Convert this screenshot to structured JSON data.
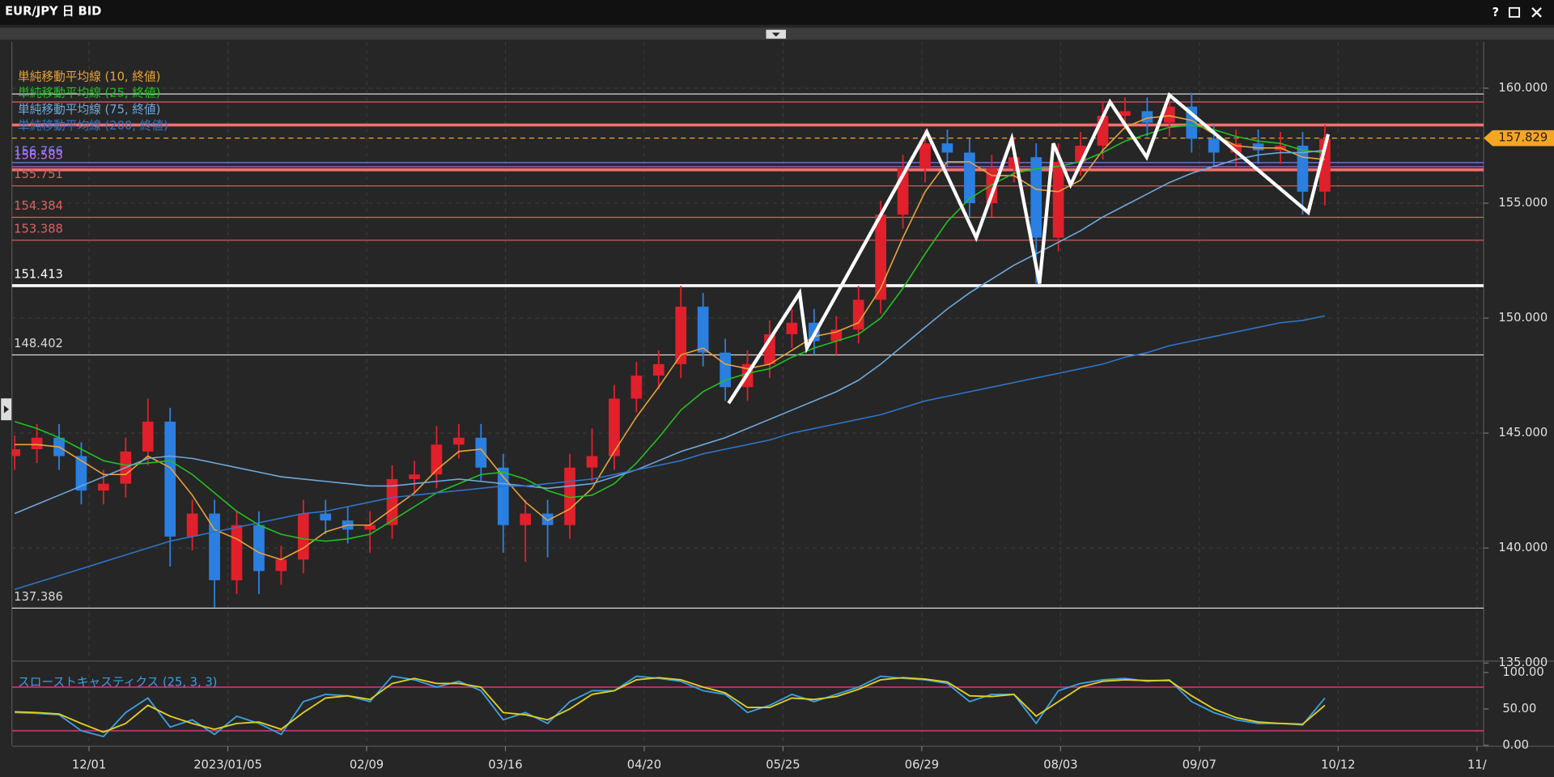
{
  "window": {
    "title": "EUR/JPY 日 BID",
    "help": "?"
  },
  "chart_data": {
    "type": "candlestick",
    "up_color": "#e0202a",
    "down_color": "#2a7fe0",
    "x": [
      0,
      4,
      8,
      12,
      16,
      20,
      24,
      28,
      32,
      36,
      40,
      44,
      48,
      52,
      56,
      60,
      64,
      68,
      72,
      76,
      80,
      84,
      88,
      92,
      96,
      100,
      104,
      108,
      112,
      116,
      120,
      124,
      128,
      132,
      136,
      140,
      144,
      148,
      152,
      156,
      160,
      164,
      168,
      172,
      176,
      180,
      184,
      188,
      192,
      196,
      200,
      204,
      208,
      212,
      216,
      220,
      224,
      228,
      232,
      236
    ],
    "open": [
      144.0,
      144.3,
      144.8,
      144.0,
      142.5,
      142.8,
      144.2,
      145.5,
      140.5,
      141.5,
      138.6,
      141.0,
      139.0,
      139.5,
      141.5,
      141.2,
      140.8,
      141.0,
      143.0,
      143.2,
      144.5,
      144.8,
      143.5,
      141.0,
      141.5,
      141.0,
      143.5,
      144.0,
      146.5,
      147.5,
      148.0,
      150.5,
      148.5,
      147.0,
      148.0,
      149.3,
      149.8,
      149.0,
      149.5,
      150.8,
      154.5,
      156.5,
      157.6,
      157.2,
      155.0,
      156.5,
      157.0,
      153.5,
      156.8,
      157.5,
      158.8,
      159.0,
      158.5,
      159.2,
      157.8,
      157.2,
      157.6,
      157.3,
      157.5,
      155.5
    ],
    "high": [
      144.9,
      145.4,
      145.4,
      144.6,
      143.4,
      144.8,
      146.5,
      146.1,
      142.1,
      142.1,
      141.6,
      141.6,
      140.1,
      142.1,
      142.1,
      141.8,
      141.6,
      143.6,
      143.8,
      145.3,
      145.4,
      145.4,
      144.1,
      142.1,
      142.1,
      144.1,
      145.2,
      147.1,
      148.1,
      148.6,
      151.4,
      151.1,
      149.1,
      148.6,
      149.9,
      150.4,
      150.4,
      150.1,
      151.4,
      155.1,
      157.1,
      158.2,
      158.2,
      157.8,
      157.1,
      157.8,
      157.6,
      157.6,
      158.1,
      159.4,
      159.6,
      159.6,
      159.8,
      159.8,
      158.4,
      158.2,
      158.2,
      158.1,
      158.1,
      158.4
    ],
    "low": [
      143.4,
      143.7,
      143.4,
      141.9,
      141.9,
      142.2,
      143.6,
      139.2,
      139.9,
      137.4,
      138.0,
      138.0,
      138.4,
      138.9,
      140.6,
      140.2,
      139.8,
      140.4,
      142.4,
      142.6,
      143.9,
      142.9,
      139.8,
      139.4,
      139.6,
      140.4,
      142.9,
      143.4,
      145.9,
      146.9,
      147.4,
      147.9,
      146.4,
      146.4,
      147.4,
      148.7,
      148.4,
      148.4,
      148.9,
      150.2,
      153.9,
      155.9,
      156.6,
      154.4,
      154.4,
      155.9,
      151.5,
      152.9,
      156.2,
      156.9,
      158.2,
      157.9,
      157.9,
      157.2,
      156.6,
      156.6,
      156.7,
      156.7,
      154.5,
      154.9
    ],
    "close": [
      144.3,
      144.8,
      144.0,
      142.5,
      142.8,
      144.2,
      145.5,
      140.5,
      141.5,
      138.6,
      141.0,
      139.0,
      139.5,
      141.5,
      141.2,
      140.8,
      141.0,
      143.0,
      143.2,
      144.5,
      144.8,
      143.5,
      141.0,
      141.5,
      141.0,
      143.5,
      144.0,
      146.5,
      147.5,
      148.0,
      150.5,
      148.5,
      147.0,
      148.0,
      149.3,
      149.8,
      149.0,
      149.5,
      150.8,
      154.5,
      156.5,
      157.6,
      157.2,
      155.0,
      156.5,
      157.0,
      153.5,
      156.8,
      157.5,
      158.8,
      159.0,
      158.5,
      159.2,
      157.8,
      157.2,
      157.6,
      157.3,
      157.5,
      155.5,
      157.8
    ],
    "xlim": [
      -0.5,
      264.6
    ],
    "xticks": [
      {
        "value": 13.4,
        "label": "12/01"
      },
      {
        "value": 38.4,
        "label": "2023/01/05"
      },
      {
        "value": 63.4,
        "label": "02/09"
      },
      {
        "value": 88.4,
        "label": "03/16"
      },
      {
        "value": 113.4,
        "label": "04/20"
      },
      {
        "value": 138.4,
        "label": "05/25"
      },
      {
        "value": 163.4,
        "label": "06/29"
      },
      {
        "value": 188.4,
        "label": "08/03"
      },
      {
        "value": 213.4,
        "label": "09/07"
      },
      {
        "value": 238.4,
        "label": "10/12"
      },
      {
        "value": 263.4,
        "label": "11/"
      }
    ],
    "ylim": [
      135,
      162
    ],
    "yticks": [
      {
        "value": 135,
        "label": "135.000"
      },
      {
        "value": 140,
        "label": "140.000"
      },
      {
        "value": 145,
        "label": "145.000"
      },
      {
        "value": 150,
        "label": "150.000"
      },
      {
        "value": 155,
        "label": "155.000"
      },
      {
        "value": 160,
        "label": "160.000"
      }
    ],
    "grid": true,
    "series": [
      {
        "name": "単純移動平均線 (10, 終値)",
        "color": "#e8a33a",
        "values": [
          144.5,
          144.5,
          144.4,
          143.8,
          143.2,
          143.2,
          144.0,
          143.5,
          142.3,
          140.8,
          140.4,
          139.8,
          139.5,
          140.0,
          140.7,
          141.0,
          141.0,
          141.7,
          142.4,
          143.4,
          144.2,
          144.3,
          143.1,
          142.0,
          141.2,
          141.7,
          142.6,
          144.2,
          145.7,
          147.0,
          148.4,
          148.7,
          148.0,
          147.8,
          148.0,
          148.6,
          149.2,
          149.4,
          149.8,
          151.3,
          153.5,
          155.5,
          156.8,
          156.8,
          156.2,
          156.2,
          155.6,
          155.5,
          156.0,
          157.3,
          158.3,
          158.7,
          158.8,
          158.6,
          158.0,
          157.5,
          157.4,
          157.4,
          157.0,
          156.9
        ]
      },
      {
        "name": "単純移動平均線 (25, 終値)",
        "color": "#22c022",
        "values": [
          145.5,
          145.2,
          144.8,
          144.3,
          143.8,
          143.6,
          143.7,
          143.8,
          143.2,
          142.4,
          141.6,
          141.0,
          140.6,
          140.4,
          140.3,
          140.4,
          140.6,
          141.2,
          141.8,
          142.4,
          142.8,
          143.2,
          143.3,
          143.0,
          142.5,
          142.2,
          142.3,
          142.8,
          143.7,
          144.8,
          146.0,
          146.8,
          147.3,
          147.6,
          147.8,
          148.3,
          148.7,
          149.0,
          149.3,
          150.0,
          151.3,
          152.8,
          154.2,
          155.2,
          155.8,
          156.3,
          156.5,
          156.6,
          156.8,
          157.2,
          157.7,
          158.0,
          158.3,
          158.4,
          158.2,
          157.9,
          157.7,
          157.6,
          157.3,
          157.2
        ]
      },
      {
        "name": "単純移動平均線 (75, 終値)",
        "color": "#6fa8dc",
        "values": [
          141.5,
          141.9,
          142.3,
          142.7,
          143.1,
          143.5,
          143.9,
          144.0,
          143.9,
          143.7,
          143.5,
          143.3,
          143.1,
          143.0,
          142.9,
          142.8,
          142.7,
          142.7,
          142.8,
          142.9,
          143.0,
          142.9,
          142.8,
          142.7,
          142.6,
          142.7,
          142.8,
          143.1,
          143.4,
          143.8,
          144.2,
          144.5,
          144.8,
          145.2,
          145.6,
          146.0,
          146.4,
          146.8,
          147.3,
          148.0,
          148.8,
          149.6,
          150.4,
          151.1,
          151.7,
          152.3,
          152.8,
          153.3,
          153.8,
          154.4,
          154.9,
          155.4,
          155.9,
          156.3,
          156.6,
          156.9,
          157.1,
          157.2,
          157.2,
          157.3
        ]
      },
      {
        "name": "単純移動平均線 (200, 終値)",
        "color": "#2e75c9",
        "values": [
          138.2,
          138.5,
          138.8,
          139.1,
          139.4,
          139.7,
          140.0,
          140.3,
          140.5,
          140.7,
          140.9,
          141.1,
          141.3,
          141.5,
          141.6,
          141.8,
          142.0,
          142.2,
          142.3,
          142.4,
          142.5,
          142.6,
          142.7,
          142.7,
          142.8,
          142.9,
          143.0,
          143.2,
          143.4,
          143.6,
          143.8,
          144.1,
          144.3,
          144.5,
          144.7,
          145.0,
          145.2,
          145.4,
          145.6,
          145.8,
          146.1,
          146.4,
          146.6,
          146.8,
          147.0,
          147.2,
          147.4,
          147.6,
          147.8,
          148.0,
          148.3,
          148.5,
          148.8,
          149.0,
          149.2,
          149.4,
          149.6,
          149.8,
          149.9,
          150.1
        ]
      }
    ],
    "levels": [
      {
        "value": 159.75,
        "color": "#d8d8d8"
      },
      {
        "value": 159.4,
        "color": "#e06060"
      },
      {
        "value": 158.4,
        "color": "#f07070",
        "thick": true
      },
      {
        "value": 156.766,
        "color": "#7b7bff",
        "label": "156.766"
      },
      {
        "value": 156.583,
        "color": "#c070ff",
        "label": "156.583"
      },
      {
        "value": 156.45,
        "color": "#f07070",
        "thick": true
      },
      {
        "value": 155.751,
        "color": "#e06060",
        "label": "155.751"
      },
      {
        "value": 154.384,
        "color": "#e06060",
        "label": "154.384"
      },
      {
        "value": 153.388,
        "color": "#e06060",
        "label": "153.388"
      },
      {
        "value": 151.413,
        "color": "#ffffff",
        "label": "151.413",
        "thick": true
      },
      {
        "value": 148.402,
        "color": "#d8d8d8",
        "label": "148.402"
      },
      {
        "value": 137.386,
        "color": "#d8d8d8",
        "label": "137.386"
      }
    ],
    "current_price": {
      "value": 157.829,
      "label": "157.829",
      "color": "#f5a623"
    },
    "zigzag": {
      "color": "#ffffff",
      "x": [
        128.6,
        141.4,
        142.7,
        164.3,
        173.2,
        179.6,
        184.6,
        187.1,
        190.2,
        197.3,
        203.9,
        208.0,
        233.0,
        236.6
      ],
      "values": [
        146.3,
        151.1,
        148.7,
        158.1,
        153.5,
        157.8,
        151.5,
        157.6,
        155.8,
        159.4,
        157.0,
        159.7,
        154.6,
        158.0
      ]
    },
    "indicator": {
      "title": "スローストキャスティクス (25, 3, 3)",
      "ylim": [
        0,
        109
      ],
      "yticks": [
        {
          "value": 0,
          "label": "0.00"
        },
        {
          "value": 50,
          "label": "50.00"
        },
        {
          "value": 100,
          "label": "100.00"
        }
      ],
      "levels": [
        80,
        20
      ],
      "level_color": "#c0306a",
      "series": [
        {
          "color": "#3aa0e0",
          "values": [
            45,
            44,
            42,
            20,
            12,
            45,
            65,
            25,
            35,
            15,
            40,
            30,
            15,
            60,
            70,
            68,
            60,
            95,
            90,
            80,
            88,
            75,
            35,
            45,
            30,
            60,
            75,
            75,
            95,
            92,
            88,
            75,
            70,
            45,
            55,
            70,
            60,
            70,
            80,
            95,
            92,
            90,
            85,
            60,
            70,
            70,
            30,
            75,
            85,
            90,
            92,
            88,
            90,
            60,
            45,
            35,
            30,
            30,
            28,
            65
          ]
        },
        {
          "color": "#e0d020",
          "values": [
            46,
            45,
            43,
            30,
            18,
            30,
            55,
            40,
            30,
            22,
            30,
            32,
            22,
            45,
            65,
            68,
            63,
            85,
            92,
            85,
            85,
            80,
            45,
            42,
            35,
            50,
            70,
            75,
            90,
            93,
            90,
            80,
            72,
            52,
            52,
            65,
            63,
            67,
            77,
            90,
            93,
            91,
            87,
            68,
            67,
            70,
            40,
            60,
            80,
            88,
            90,
            89,
            89,
            68,
            50,
            38,
            32,
            30,
            29,
            55
          ]
        }
      ]
    }
  }
}
